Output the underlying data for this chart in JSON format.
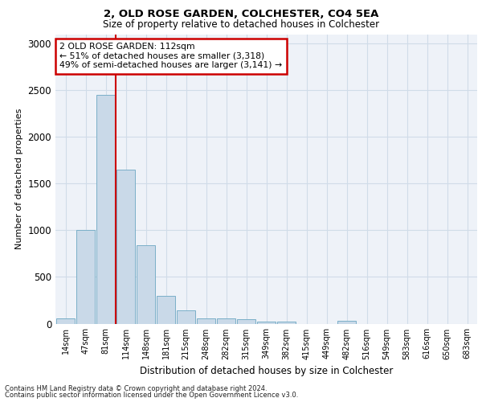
{
  "title1": "2, OLD ROSE GARDEN, COLCHESTER, CO4 5EA",
  "title2": "Size of property relative to detached houses in Colchester",
  "xlabel": "Distribution of detached houses by size in Colchester",
  "ylabel": "Number of detached properties",
  "bar_labels": [
    "14sqm",
    "47sqm",
    "81sqm",
    "114sqm",
    "148sqm",
    "181sqm",
    "215sqm",
    "248sqm",
    "282sqm",
    "315sqm",
    "349sqm",
    "382sqm",
    "415sqm",
    "449sqm",
    "482sqm",
    "516sqm",
    "549sqm",
    "583sqm",
    "616sqm",
    "650sqm",
    "683sqm"
  ],
  "bar_values": [
    60,
    1000,
    2450,
    1650,
    840,
    300,
    140,
    55,
    55,
    50,
    25,
    20,
    0,
    0,
    30,
    0,
    0,
    0,
    0,
    0,
    0
  ],
  "bar_color": "#c9d9e8",
  "bar_edge_color": "#7aafc8",
  "vline_x_index": 2.5,
  "annotation_text": "2 OLD ROSE GARDEN: 112sqm\n← 51% of detached houses are smaller (3,318)\n49% of semi-detached houses are larger (3,141) →",
  "annotation_box_color": "#ffffff",
  "annotation_box_edge_color": "#cc0000",
  "vline_color": "#cc0000",
  "ylim": [
    0,
    3100
  ],
  "yticks": [
    0,
    500,
    1000,
    1500,
    2000,
    2500,
    3000
  ],
  "grid_color": "#d0dce8",
  "footnote1": "Contains HM Land Registry data © Crown copyright and database right 2024.",
  "footnote2": "Contains public sector information licensed under the Open Government Licence v3.0.",
  "bg_color": "#eef2f8"
}
